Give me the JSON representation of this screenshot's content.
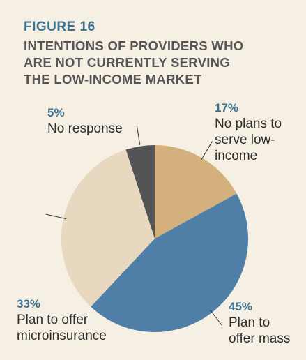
{
  "figure": {
    "label": "FIGURE 16",
    "title_lines": [
      "INTENTIONS OF PROVIDERS WHO",
      "ARE NOT CURRENTLY SERVING",
      "THE LOW-INCOME MARKET"
    ]
  },
  "chart_data": {
    "type": "pie",
    "title": "INTENTIONS OF PROVIDERS WHO ARE NOT CURRENTLY SERVING THE LOW-INCOME MARKET",
    "slices": [
      {
        "pct_label": "17%",
        "value": 17,
        "label_lines": [
          "No plans to",
          "serve low-",
          "income"
        ],
        "color": "#d4b07c"
      },
      {
        "pct_label": "45%",
        "value": 45,
        "label_lines": [
          "Plan to",
          "offer mass"
        ],
        "color": "#4f7fa6"
      },
      {
        "pct_label": "33%",
        "value": 33,
        "label_lines": [
          "Plan to offer",
          "microinsurance"
        ],
        "color": "#e8d8bf"
      },
      {
        "pct_label": "5%",
        "value": 5,
        "label_lines": [
          "No response"
        ],
        "color": "#545457"
      }
    ],
    "start_angle": "12 o'clock",
    "direction": "clockwise",
    "legend": "none"
  }
}
